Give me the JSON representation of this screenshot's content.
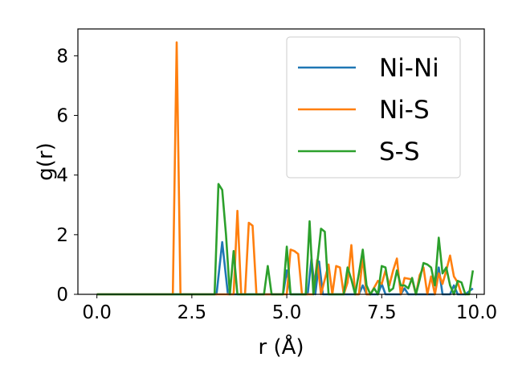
{
  "chart_data": {
    "type": "line",
    "title": "",
    "xlabel": "r (Å)",
    "ylabel": "g(r)",
    "xlim": [
      -0.5,
      10.2
    ],
    "ylim": [
      0,
      8.9
    ],
    "xticks": [
      0.0,
      2.5,
      5.0,
      7.5,
      10.0
    ],
    "xtick_labels": [
      "0.0",
      "2.5",
      "5.0",
      "7.5",
      "10.0"
    ],
    "yticks": [
      0,
      2,
      4,
      6,
      8
    ],
    "ytick_labels": [
      "0",
      "2",
      "4",
      "6",
      "8"
    ],
    "grid": false,
    "legend_position": "top-right",
    "series": [
      {
        "name": "Ni-Ni",
        "color": "#1f77b4",
        "x": [
          0.0,
          3.15,
          3.3,
          3.45,
          4.9,
          5.0,
          5.1,
          5.55,
          5.65,
          5.75,
          5.85,
          5.95,
          6.05,
          6.9,
          7.0,
          7.1,
          7.4,
          7.5,
          7.6,
          8.0,
          8.1,
          8.2,
          8.9,
          9.0,
          9.1,
          9.3,
          9.4,
          9.5,
          9.7,
          9.9
        ],
        "y": [
          0,
          0,
          1.75,
          0,
          0,
          0.8,
          0,
          0,
          1.2,
          0,
          1.1,
          0,
          0,
          0,
          0.3,
          0,
          0,
          0.35,
          0,
          0,
          0.2,
          0,
          0,
          0.9,
          0,
          0,
          0.3,
          0,
          0,
          0.2
        ]
      },
      {
        "name": "Ni-S",
        "color": "#ff7f0e",
        "x": [
          0.0,
          2.0,
          2.1,
          2.2,
          3.5,
          3.6,
          3.7,
          3.8,
          3.9,
          4.0,
          4.1,
          4.2,
          4.9,
          5.0,
          5.1,
          5.2,
          5.3,
          5.4,
          5.5,
          5.6,
          5.7,
          5.8,
          5.9,
          6.1,
          6.2,
          6.3,
          6.4,
          6.5,
          6.6,
          6.7,
          6.8,
          6.9,
          7.0,
          7.1,
          7.2,
          7.4,
          7.5,
          7.6,
          7.7,
          7.8,
          7.9,
          8.0,
          8.1,
          8.3,
          8.4,
          8.5,
          8.6,
          8.7,
          8.8,
          8.9,
          9.0,
          9.1,
          9.2,
          9.3,
          9.4,
          9.5,
          9.6
        ],
        "y": [
          0,
          0,
          8.45,
          0,
          0,
          0,
          2.8,
          0,
          0,
          2.4,
          2.3,
          0,
          0,
          0,
          1.5,
          1.45,
          1.35,
          0,
          0,
          0,
          0,
          1.15,
          0,
          1.0,
          0,
          0.95,
          0.9,
          0,
          0.4,
          1.65,
          0,
          0,
          1.25,
          0,
          0,
          0.45,
          0.35,
          0.8,
          0.3,
          0.8,
          1.2,
          0,
          0.55,
          0.5,
          0,
          0.65,
          0.9,
          0,
          0.6,
          0,
          0.7,
          0.35,
          0.8,
          1.3,
          0.6,
          0.4,
          0
        ]
      },
      {
        "name": "S-S",
        "color": "#2ca02c",
        "x": [
          0.0,
          3.1,
          3.2,
          3.3,
          3.4,
          3.5,
          3.6,
          3.7,
          4.4,
          4.5,
          4.6,
          4.9,
          5.0,
          5.1,
          5.5,
          5.6,
          5.7,
          5.8,
          5.9,
          6.0,
          6.1,
          6.5,
          6.6,
          6.7,
          6.8,
          6.9,
          7.0,
          7.1,
          7.2,
          7.3,
          7.4,
          7.5,
          7.6,
          7.7,
          7.8,
          7.9,
          8.0,
          8.1,
          8.2,
          8.3,
          8.4,
          8.5,
          8.6,
          8.7,
          8.8,
          8.9,
          9.0,
          9.1,
          9.2,
          9.3,
          9.4,
          9.5,
          9.6,
          9.7,
          9.8,
          9.9
        ],
        "y": [
          0,
          0,
          3.7,
          3.5,
          2.0,
          0,
          1.45,
          0,
          0,
          0.95,
          0,
          0,
          1.6,
          0,
          0,
          2.45,
          0,
          1.0,
          2.2,
          2.1,
          0,
          0,
          0.9,
          0.5,
          0,
          0.7,
          1.5,
          0.3,
          0,
          0.2,
          0,
          0.95,
          0.9,
          0.1,
          0.2,
          0.8,
          0.3,
          0.3,
          0.2,
          0.55,
          0,
          0.5,
          1.05,
          1.0,
          0.9,
          0.3,
          1.9,
          0.7,
          0.9,
          0.3,
          0,
          0.45,
          0.4,
          0,
          0,
          0.8
        ]
      }
    ]
  }
}
